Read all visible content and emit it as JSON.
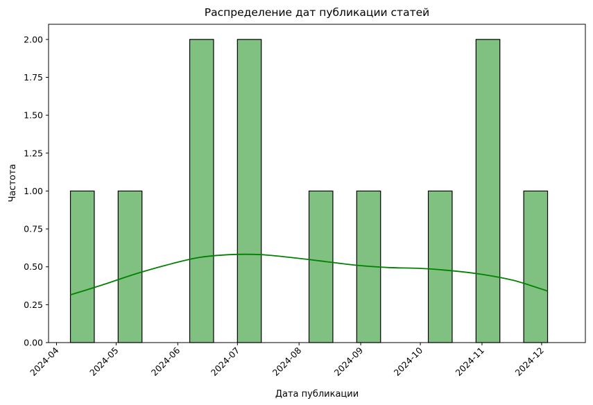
{
  "chart_data": {
    "type": "bar",
    "title": "Распределение дат публикации статей",
    "xlabel": "Дата публикации",
    "ylabel": "Частота",
    "ylim": [
      0,
      2.1
    ],
    "x_range": [
      "2024-03-28",
      "2024-12-23"
    ],
    "y_ticks": [
      "0.00",
      "0.25",
      "0.50",
      "0.75",
      "1.00",
      "1.25",
      "1.50",
      "1.75",
      "2.00"
    ],
    "x_ticks": [
      {
        "label": "2024-04",
        "date": "2024-04-01"
      },
      {
        "label": "2024-05",
        "date": "2024-05-01"
      },
      {
        "label": "2024-06",
        "date": "2024-06-01"
      },
      {
        "label": "2024-07",
        "date": "2024-07-01"
      },
      {
        "label": "2024-08",
        "date": "2024-08-01"
      },
      {
        "label": "2024-09",
        "date": "2024-09-01"
      },
      {
        "label": "2024-10",
        "date": "2024-10-01"
      },
      {
        "label": "2024-11",
        "date": "2024-11-01"
      },
      {
        "label": "2024-12",
        "date": "2024-12-01"
      }
    ],
    "bins": [
      {
        "start": "2024-04-08",
        "end": "2024-04-20",
        "count": 1
      },
      {
        "start": "2024-04-20",
        "end": "2024-05-02",
        "count": 0
      },
      {
        "start": "2024-05-02",
        "end": "2024-05-14",
        "count": 1
      },
      {
        "start": "2024-05-14",
        "end": "2024-05-26",
        "count": 0
      },
      {
        "start": "2024-05-26",
        "end": "2024-06-07",
        "count": 0
      },
      {
        "start": "2024-06-07",
        "end": "2024-06-19",
        "count": 2
      },
      {
        "start": "2024-06-19",
        "end": "2024-07-01",
        "count": 0
      },
      {
        "start": "2024-07-01",
        "end": "2024-07-13",
        "count": 2
      },
      {
        "start": "2024-07-13",
        "end": "2024-07-25",
        "count": 0
      },
      {
        "start": "2024-07-25",
        "end": "2024-08-06",
        "count": 0
      },
      {
        "start": "2024-08-06",
        "end": "2024-08-18",
        "count": 1
      },
      {
        "start": "2024-08-18",
        "end": "2024-08-30",
        "count": 0
      },
      {
        "start": "2024-08-30",
        "end": "2024-09-11",
        "count": 1
      },
      {
        "start": "2024-09-11",
        "end": "2024-09-23",
        "count": 0
      },
      {
        "start": "2024-09-23",
        "end": "2024-10-05",
        "count": 0
      },
      {
        "start": "2024-10-05",
        "end": "2024-10-17",
        "count": 1
      },
      {
        "start": "2024-10-17",
        "end": "2024-10-29",
        "count": 0
      },
      {
        "start": "2024-10-29",
        "end": "2024-11-10",
        "count": 2
      },
      {
        "start": "2024-11-10",
        "end": "2024-11-22",
        "count": 0
      },
      {
        "start": "2024-11-22",
        "end": "2024-12-04",
        "count": 1
      }
    ],
    "kde": {
      "dates": [
        "2024-04-08",
        "2024-04-24",
        "2024-05-10",
        "2024-05-26",
        "2024-06-11",
        "2024-06-27",
        "2024-07-13",
        "2024-07-29",
        "2024-08-14",
        "2024-08-30",
        "2024-09-15",
        "2024-09-30",
        "2024-10-16",
        "2024-11-01",
        "2024-11-17",
        "2024-12-04"
      ],
      "values": [
        0.315,
        0.38,
        0.45,
        0.51,
        0.56,
        0.58,
        0.58,
        0.56,
        0.535,
        0.51,
        0.495,
        0.49,
        0.475,
        0.45,
        0.41,
        0.34
      ]
    },
    "colors": {
      "bar_fill": "#80c080",
      "bar_edge": "#000000",
      "kde_line": "#008000"
    },
    "grid": false,
    "legend": "none"
  }
}
